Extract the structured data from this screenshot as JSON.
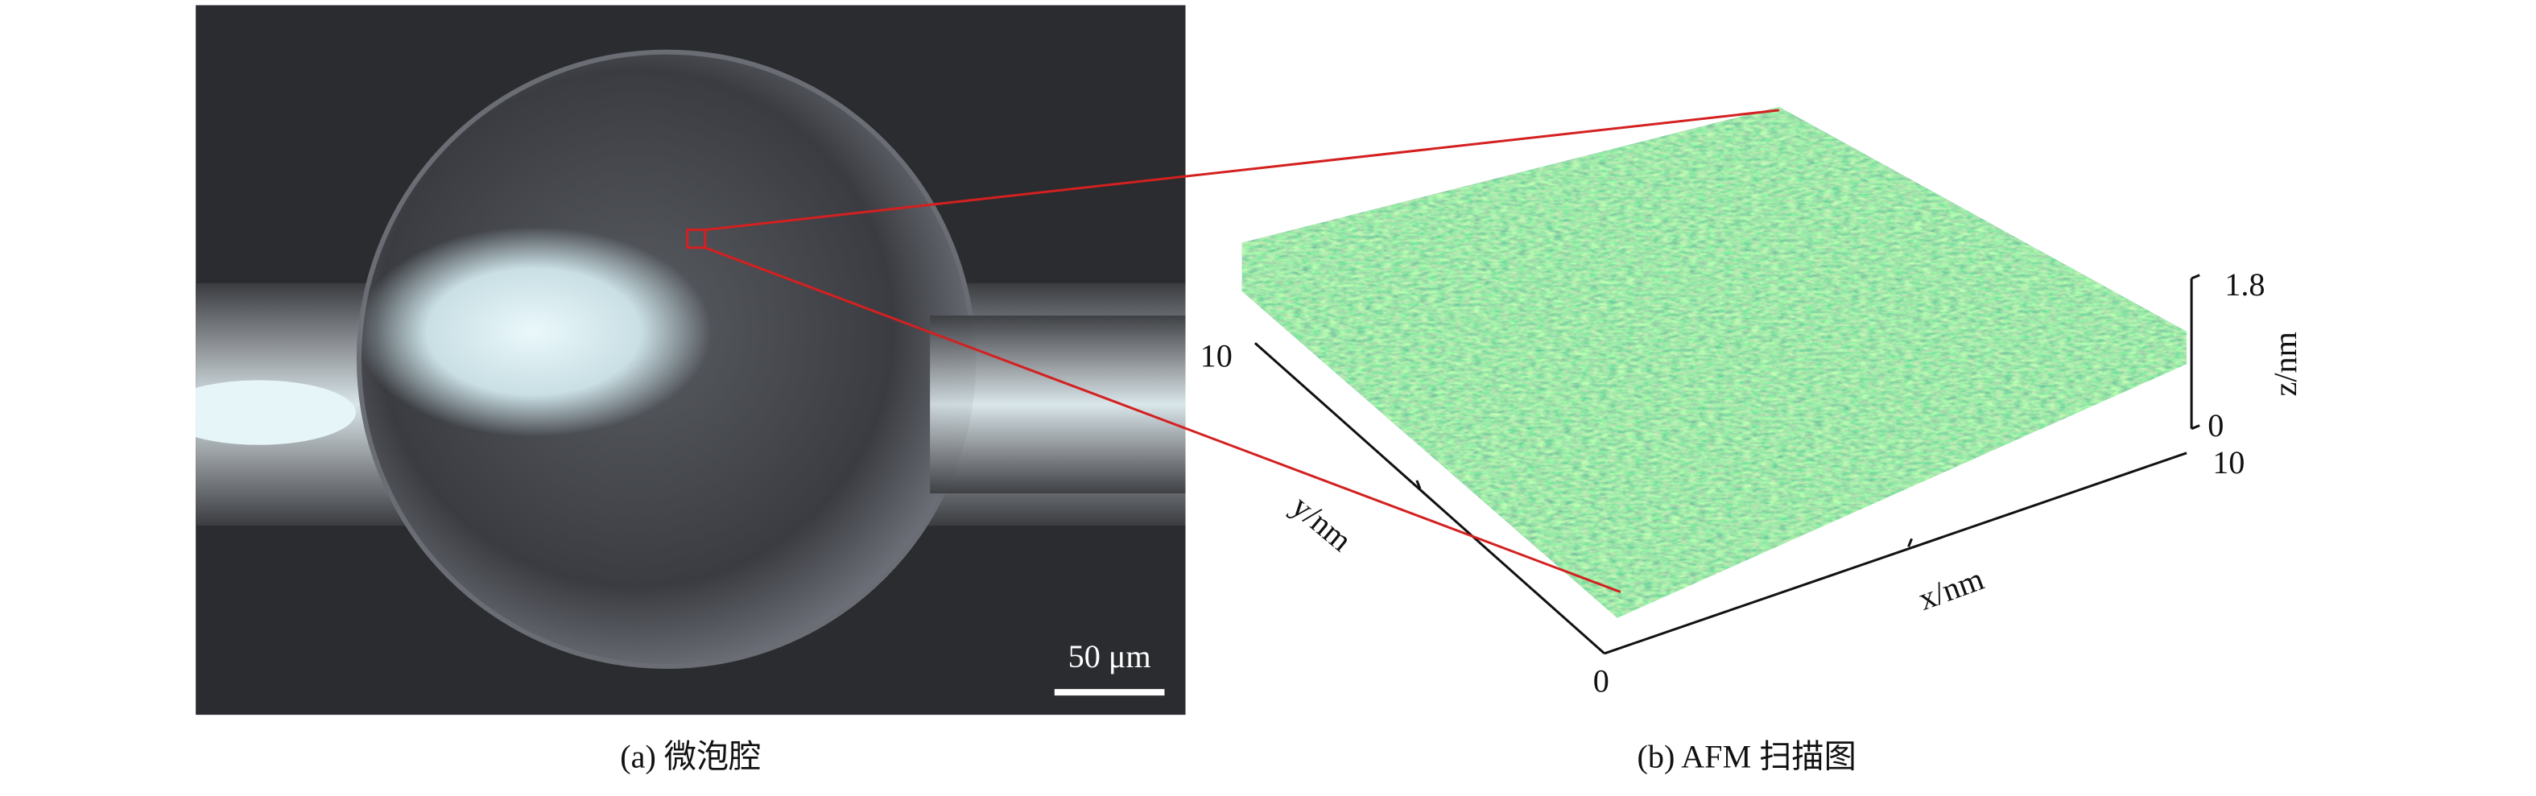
{
  "panel_a": {
    "caption": "(a) 微泡腔",
    "scale_bar": "50 μm"
  },
  "panel_b": {
    "caption": "(b) AFM 扫描图",
    "x_axis": {
      "label": "x/nm",
      "tick_end": "10"
    },
    "y_axis": {
      "label": "y/nm",
      "tick_end": "10"
    },
    "origin": "0",
    "z_axis": {
      "label": "z/nm",
      "tick_start": "0",
      "tick_end": "1.8"
    }
  }
}
